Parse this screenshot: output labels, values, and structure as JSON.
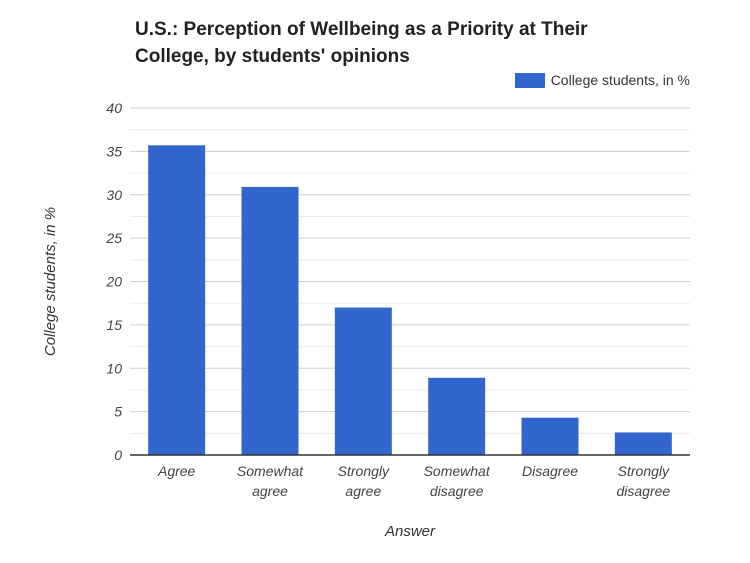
{
  "chart_data": {
    "type": "bar",
    "title": "U.S.: Perception of Wellbeing as a Priority at Their College, by students' opinions",
    "xlabel": "Answer",
    "ylabel": "College students, in %",
    "categories": [
      "Agree",
      "Somewhat agree",
      "Strongly agree",
      "Somewhat disagree",
      "Disagree",
      "Strongly disagree"
    ],
    "series": [
      {
        "name": "College students, in %",
        "values": [
          35.7,
          30.9,
          17.0,
          8.9,
          4.3,
          2.6
        ],
        "color": "#3366cc"
      }
    ],
    "ylim": [
      0,
      40
    ],
    "yticks": [
      0,
      5,
      10,
      15,
      20,
      25,
      30,
      35,
      40
    ],
    "grid": true,
    "legend": "top-right"
  }
}
